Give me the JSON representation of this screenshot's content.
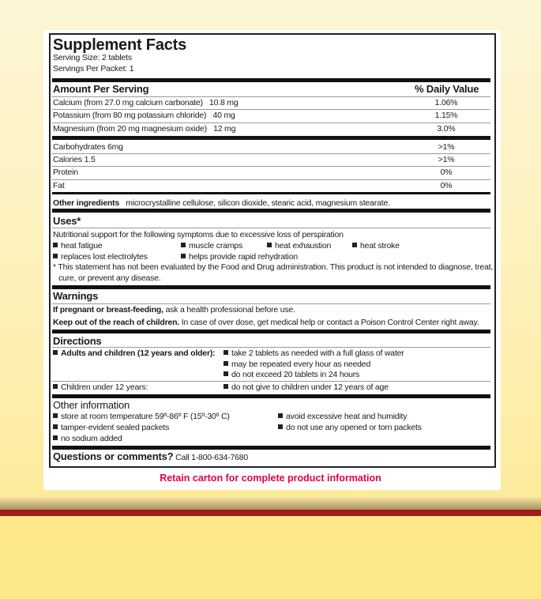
{
  "title": "Supplement Facts",
  "serving_size": "Serving Size: 2 tablets",
  "servings_per": "Servings Per Packet: 1",
  "amount_header": "Amount Per Serving",
  "dv_header": "% Daily Value",
  "nutrients": [
    {
      "name": "Calcium (from 27.0 mg calcium carbonate)",
      "amount": "10.8 mg",
      "dv": "1.06%"
    },
    {
      "name": "Potassium (from 80 mg potassium chloride)",
      "amount": "40 mg",
      "dv": "1.15%"
    },
    {
      "name": "Magnesium (from 20 mg magnesium oxide)",
      "amount": "12 mg",
      "dv": "3.0%"
    },
    {
      "name": "Carbohydrates 6mg",
      "dv": ">1%"
    },
    {
      "name": "Calories 1.5",
      "dv": ">1%"
    },
    {
      "name": "Protein",
      "dv": "0%"
    },
    {
      "name": "Fat",
      "dv": "0%"
    }
  ],
  "other_ingredients": {
    "label": "Other ingredients",
    "text": "microcrystalline cellulose, silicon dioxide, stearic acid, magnesium stearate."
  },
  "uses": {
    "heading": "Uses*",
    "intro": "Nutritional support for the following symptoms due to excessive loss of perspiration",
    "items": [
      "heat fatigue",
      "muscle cramps",
      "heat exhaustion",
      "heat stroke",
      "replaces lost electrolytes",
      "helps provide rapid rehydration"
    ],
    "disclaimer1": "* This statement has not been evaluated by the Food and Drug administration. This product is not intended to diagnose, treat,",
    "disclaimer2": "cure, or prevent any disease."
  },
  "warnings": {
    "heading": "Warnings",
    "w1_bold": "If pregnant or breast-feeding,",
    "w1": " ask a health professional before use.",
    "w2_bold": "Keep out of the reach of children.",
    "w2": " In case of over dose, get medical help or contact a Poison Control Center right away."
  },
  "directions": {
    "heading": "Directions",
    "adults": "Adults and children (12 years and older):",
    "adult_items": [
      "take 2 tablets as needed with a full glass of water",
      "may be repeated every hour as needed",
      "do not exceed 20 tablets in 24 hours"
    ],
    "children": "Children under 12 years:",
    "child_item": "do not give to children under 12 years of age"
  },
  "other_info": {
    "heading": "Other information",
    "items": [
      "store at room temperature  59º-86º F (15º-30º C)",
      "tamper-evident sealed packets",
      "no sodium added",
      "avoid excessive heat and humidity",
      "do not use any opened or torn packets"
    ]
  },
  "questions": {
    "bold": "Questions or comments?",
    "text": " Call 1-800-634-7680"
  },
  "retain": "Retain carton for complete product information",
  "colors": {
    "accent_red": "#e0004d",
    "band": "#a01b1b",
    "background": "#fde98e"
  }
}
